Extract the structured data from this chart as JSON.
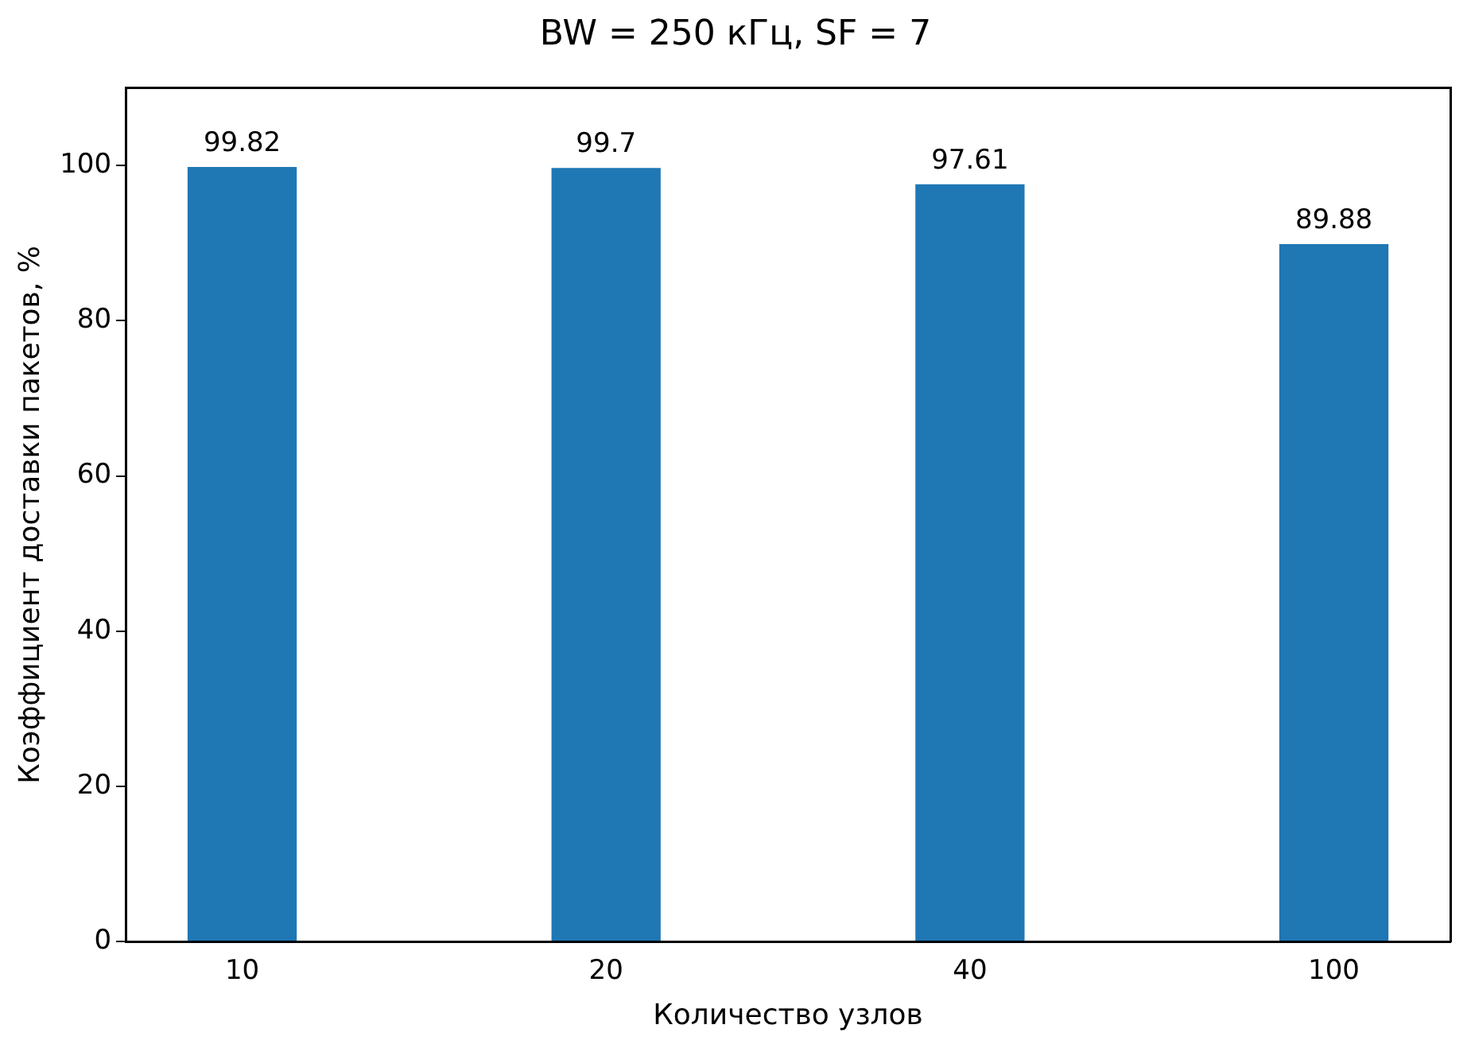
{
  "chart_data": {
    "type": "bar",
    "title": "BW = 250 кГц, SF = 7",
    "xlabel": "Количество узлов",
    "ylabel": "Коэффициент доставки пакетов, %",
    "categories": [
      "10",
      "20",
      "40",
      "100"
    ],
    "values": [
      99.82,
      99.7,
      97.61,
      89.88
    ],
    "color": "#1f77b4",
    "ylim": [
      0,
      110
    ],
    "yticks": [
      0,
      20,
      40,
      60,
      80,
      100
    ],
    "grid": false,
    "legend": false,
    "data_labels": true
  }
}
